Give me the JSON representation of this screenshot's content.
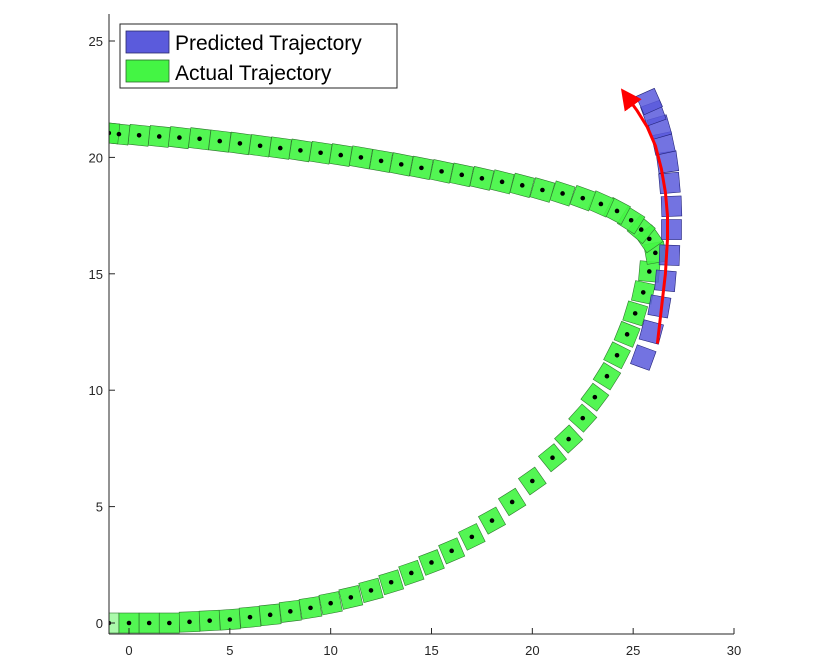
{
  "chart_data": {
    "type": "scatter",
    "title": "",
    "xlabel": "",
    "ylabel": "",
    "xlim": [
      -1,
      30
    ],
    "ylim": [
      -0.5,
      26
    ],
    "x_ticks": [
      0,
      5,
      10,
      15,
      20,
      25,
      30
    ],
    "y_ticks": [
      0,
      5,
      10,
      15,
      20,
      25
    ],
    "x_tick_labels": [
      "0",
      "5",
      "10",
      "15",
      "20",
      "25",
      "30"
    ],
    "y_tick_labels": [
      "0",
      "5",
      "10",
      "15",
      "20",
      "25"
    ],
    "grid": false,
    "legend_position": "top-left",
    "legend": [
      {
        "label": "Predicted Trajectory",
        "color": "#5b5bdc"
      },
      {
        "label": "Actual Trajectory",
        "color": "#44f544"
      }
    ],
    "series": [
      {
        "name": "Actual Trajectory",
        "color": "#44f544",
        "x": [
          -1.0,
          0.0,
          1.0,
          2.0,
          3.0,
          4.0,
          5.0,
          6.0,
          7.0,
          8.0,
          9.0,
          10.0,
          11.0,
          12.0,
          13.0,
          14.0,
          15.0,
          16.0,
          17.0,
          18.0,
          19.0,
          20.0,
          21.0,
          21.8,
          22.5,
          23.1,
          23.7,
          24.2,
          24.7,
          25.1,
          25.5,
          25.8,
          26.1,
          25.8,
          25.4,
          24.9,
          24.2,
          23.4,
          22.5,
          21.5,
          20.5,
          19.5,
          18.5,
          17.5,
          16.5,
          15.5,
          14.5,
          13.5,
          12.5,
          11.5,
          10.5,
          9.5,
          8.5,
          7.5,
          6.5,
          5.5,
          4.5,
          3.5,
          2.5,
          1.5,
          0.5,
          -0.5,
          -1.0
        ],
        "y": [
          0.0,
          0.0,
          0.0,
          0.0,
          0.05,
          0.1,
          0.15,
          0.25,
          0.35,
          0.5,
          0.65,
          0.85,
          1.1,
          1.4,
          1.75,
          2.15,
          2.6,
          3.1,
          3.7,
          4.4,
          5.2,
          6.1,
          7.1,
          7.9,
          8.8,
          9.7,
          10.6,
          11.5,
          12.4,
          13.3,
          14.2,
          15.1,
          15.9,
          16.5,
          16.9,
          17.3,
          17.7,
          18.0,
          18.25,
          18.45,
          18.6,
          18.8,
          18.95,
          19.1,
          19.25,
          19.4,
          19.55,
          19.7,
          19.85,
          20.0,
          20.1,
          20.2,
          20.3,
          20.4,
          20.5,
          20.6,
          20.7,
          20.8,
          20.85,
          20.9,
          20.95,
          21.0,
          21.05
        ],
        "heading_deg": [
          0,
          0,
          0,
          0,
          2,
          3,
          4,
          5,
          6,
          7,
          9,
          11,
          13,
          15,
          17,
          19,
          21,
          23,
          26,
          29,
          32,
          35,
          39,
          43,
          48,
          53,
          58,
          63,
          68,
          73,
          78,
          85,
          100,
          125,
          140,
          148,
          152,
          156,
          160,
          162,
          164,
          165,
          166,
          167,
          168,
          168,
          169,
          169,
          170,
          170,
          171,
          171,
          171,
          172,
          172,
          172,
          173,
          173,
          173,
          174,
          174,
          174,
          174
        ]
      },
      {
        "name": "Predicted Trajectory",
        "color": "#5b5bdc",
        "x": [
          25.5,
          25.9,
          26.3,
          26.6,
          26.8,
          26.9,
          26.9,
          26.8,
          26.7,
          26.5,
          26.3,
          26.0,
          25.8
        ],
        "y": [
          11.4,
          12.5,
          13.6,
          14.7,
          15.8,
          16.9,
          17.9,
          18.9,
          19.8,
          20.6,
          21.3,
          21.9,
          22.4
        ],
        "heading_deg": [
          70,
          75,
          80,
          85,
          88,
          90,
          92,
          95,
          98,
          102,
          106,
          110,
          114
        ]
      }
    ],
    "predicted_path": {
      "color": "#ff0000",
      "x": [
        26.2,
        26.4,
        26.6,
        26.7,
        26.7,
        26.6,
        26.4,
        26.1,
        25.7,
        25.2,
        24.7
      ],
      "y": [
        12.0,
        13.5,
        15.0,
        16.5,
        17.5,
        18.5,
        19.5,
        20.5,
        21.3,
        22.0,
        22.6
      ]
    }
  }
}
